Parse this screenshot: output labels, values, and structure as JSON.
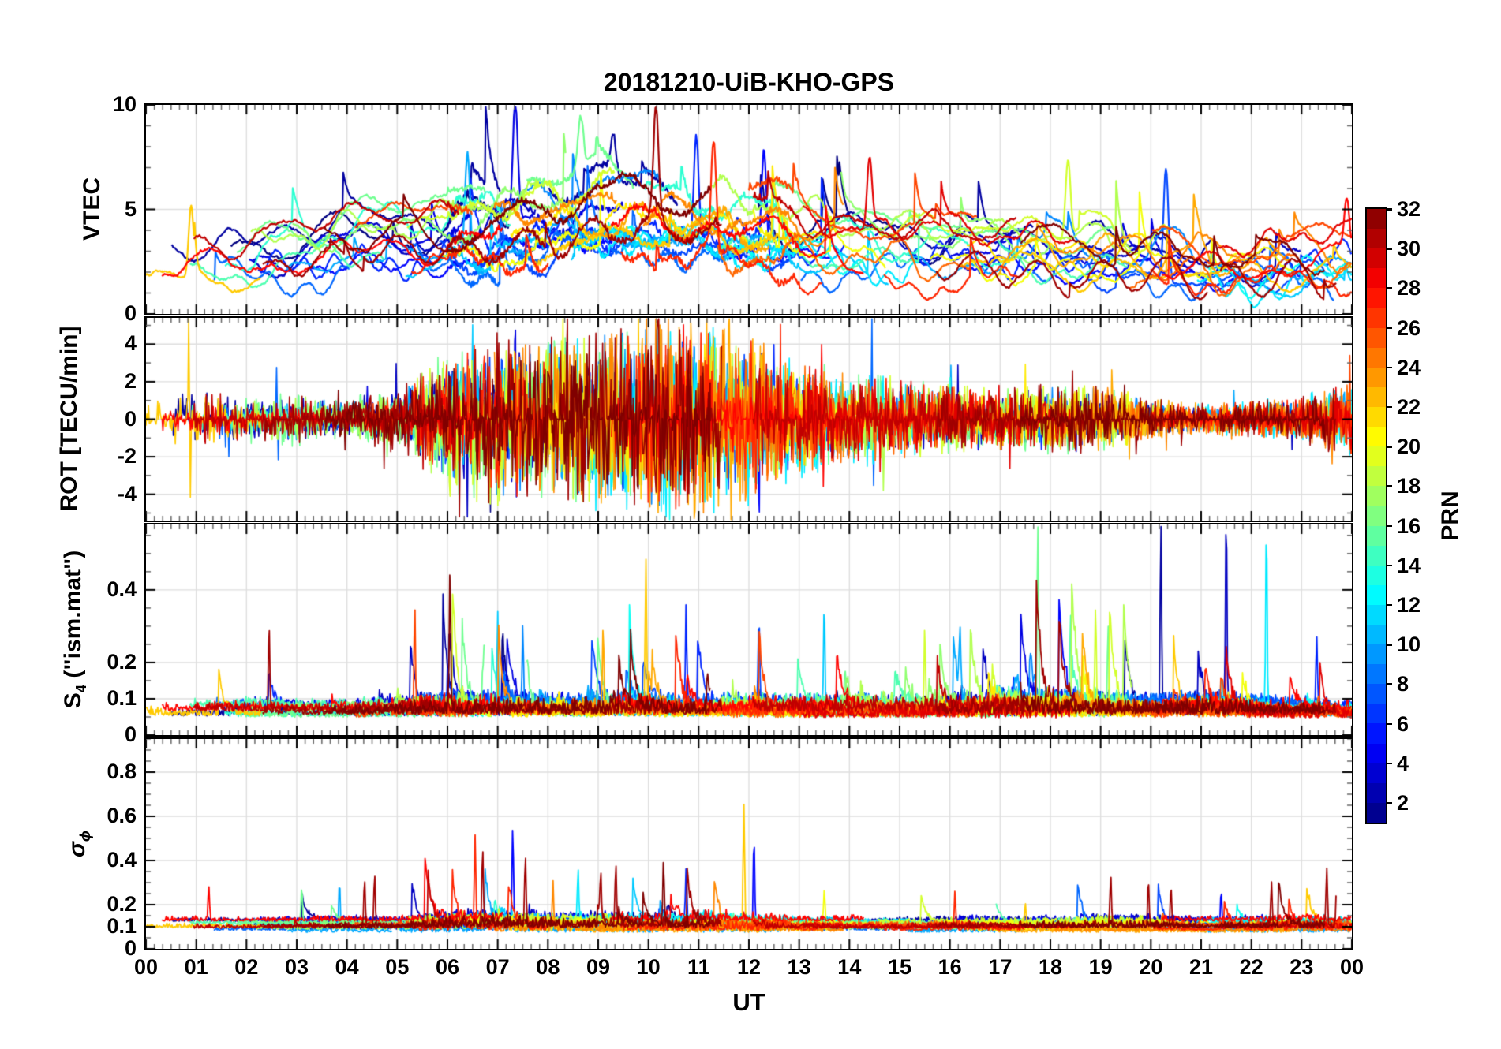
{
  "chart_data": {
    "type": "line",
    "title": "20181210-UiB-KHO-GPS",
    "xlabel": "UT",
    "x_range": [
      0,
      24
    ],
    "x_tick_labels": [
      "00",
      "01",
      "02",
      "03",
      "04",
      "05",
      "06",
      "07",
      "08",
      "09",
      "10",
      "11",
      "12",
      "13",
      "14",
      "15",
      "16",
      "17",
      "18",
      "19",
      "20",
      "21",
      "22",
      "23",
      "00"
    ],
    "x_minor_step_minutes": 10,
    "grid": true,
    "prn_range": [
      1,
      32
    ],
    "colorbar": {
      "label": "PRN",
      "colormap": "jet",
      "value_range": [
        1,
        32
      ],
      "steps": 31,
      "tick_values": [
        2,
        4,
        6,
        8,
        10,
        12,
        14,
        16,
        18,
        20,
        22,
        24,
        26,
        28,
        30,
        32
      ],
      "tick_labels": [
        "2",
        "4",
        "6",
        "8",
        "10",
        "12",
        "14",
        "16",
        "18",
        "20",
        "22",
        "24",
        "26",
        "28",
        "30",
        "32"
      ]
    },
    "panels": [
      {
        "id": "vtec",
        "ylabel": "VTEC",
        "ylim": [
          0,
          10
        ],
        "ytick_values": [
          0,
          5,
          10
        ],
        "ytick_labels": [
          "0",
          "5",
          "10"
        ],
        "y_minor_step": 1,
        "hourly_mean": [
          2.5,
          2.6,
          2.6,
          3.2,
          3.5,
          3.6,
          3.8,
          4.2,
          4.6,
          5.0,
          5.0,
          4.8,
          4.3,
          4.0,
          3.6,
          3.4,
          3.2,
          3.0,
          3.0,
          2.9,
          2.7,
          2.6,
          2.7,
          2.8,
          3.0
        ],
        "hourly_max": [
          4.2,
          4.3,
          4.4,
          5.3,
          5.5,
          5.8,
          8.0,
          9.6,
          8.8,
          9.0,
          9.2,
          9.3,
          8.6,
          7.2,
          8.0,
          6.3,
          5.6,
          5.2,
          5.0,
          6.8,
          7.2,
          5.2,
          4.6,
          4.8,
          5.0
        ],
        "events": [
          [
            0.9,
            22,
            5.2
          ],
          [
            6.4,
            10,
            7.8
          ],
          [
            7.35,
            4,
            9.6
          ],
          [
            8.65,
            16,
            8.6
          ],
          [
            9.3,
            2,
            8.4
          ],
          [
            10.15,
            31,
            8.9
          ],
          [
            10.95,
            6,
            9.1
          ],
          [
            11.3,
            27,
            8.0
          ],
          [
            12.3,
            5,
            7.8
          ],
          [
            14.4,
            29,
            7.7
          ],
          [
            18.35,
            19,
            7.2
          ],
          [
            20.3,
            7,
            7.3
          ],
          [
            23.9,
            28,
            4.9
          ]
        ]
      },
      {
        "id": "rot",
        "ylabel": "ROT [TECU/min]",
        "ylim": [
          -5.4,
          5.4
        ],
        "ytick_values": [
          -4,
          -2,
          0,
          2,
          4
        ],
        "ytick_labels": [
          "-4",
          "-2",
          "0",
          "2",
          "4"
        ],
        "y_minor_step": 1,
        "hourly_amplitude": [
          0.4,
          0.9,
          0.5,
          0.55,
          0.45,
          0.7,
          1.5,
          1.7,
          1.6,
          1.8,
          1.9,
          2.0,
          1.7,
          1.2,
          1.0,
          0.85,
          0.7,
          0.6,
          0.7,
          0.65,
          0.4,
          0.32,
          0.38,
          0.45,
          0.8
        ],
        "events": [
          [
            0.85,
            22,
            4.9
          ],
          [
            2.6,
            8,
            2.8
          ],
          [
            6.5,
            11,
            5.2
          ],
          [
            7.35,
            4,
            5.5
          ],
          [
            8.3,
            20,
            4.2
          ],
          [
            9.3,
            19,
            -4.6
          ],
          [
            10.2,
            31,
            5.0
          ],
          [
            10.7,
            28,
            5.2
          ],
          [
            11.05,
            27,
            5.3
          ],
          [
            11.6,
            23,
            4.6
          ],
          [
            12.2,
            5,
            -5.4
          ],
          [
            12.5,
            6,
            4.2
          ],
          [
            13.45,
            28,
            4.1
          ],
          [
            14.45,
            8,
            4.6
          ],
          [
            16.0,
            14,
            2.6
          ],
          [
            18.3,
            16,
            2.2
          ],
          [
            19.15,
            24,
            2.4
          ]
        ]
      },
      {
        "id": "s4",
        "ylabel_parts": {
          "main": "S",
          "sub": "4",
          "suffix": " (\"ism.mat\")"
        },
        "ylim": [
          0,
          0.58
        ],
        "ytick_values": [
          0,
          0.1,
          0.2,
          0.4
        ],
        "ytick_labels": [
          "0",
          "0.1",
          "0.2",
          "0.4"
        ],
        "y_minor_step": 0.05,
        "baseline": 0.06,
        "hourly_activity": [
          0.6,
          0.55,
          0.65,
          0.5,
          0.5,
          0.8,
          1.1,
          1.0,
          0.9,
          1.0,
          1.1,
          0.9,
          0.9,
          0.9,
          1.0,
          0.95,
          1.0,
          1.25,
          1.25,
          1.1,
          0.9,
          1.1,
          0.9,
          0.7,
          0.7
        ],
        "events": [
          [
            2.45,
            31,
            0.3
          ],
          [
            5.35,
            26,
            0.34
          ],
          [
            6.05,
            32,
            0.45
          ],
          [
            7.0,
            11,
            0.31
          ],
          [
            7.5,
            9,
            0.27
          ],
          [
            9.1,
            23,
            0.28
          ],
          [
            9.95,
            22,
            0.44
          ],
          [
            10.75,
            6,
            0.33
          ],
          [
            12.2,
            7,
            0.33
          ],
          [
            13.5,
            11,
            0.36
          ],
          [
            15.5,
            19,
            0.27
          ],
          [
            16.2,
            10,
            0.25
          ],
          [
            17.75,
            16,
            0.57
          ],
          [
            18.4,
            15,
            0.3
          ],
          [
            18.9,
            19,
            0.34
          ],
          [
            19.15,
            16,
            0.3
          ],
          [
            20.2,
            2,
            0.57
          ],
          [
            21.5,
            3,
            0.58
          ],
          [
            22.3,
            12,
            0.58
          ],
          [
            23.3,
            6,
            0.26
          ]
        ]
      },
      {
        "id": "sigma_phi",
        "ylabel_parts": {
          "main": "σ",
          "sub": "ϕ"
        },
        "ylim": [
          0,
          0.95
        ],
        "ytick_values": [
          0,
          0.1,
          0.2,
          0.4,
          0.6,
          0.8
        ],
        "ytick_labels": [
          "0",
          "0.1",
          "0.2",
          "0.4",
          "0.6",
          "0.8"
        ],
        "y_minor_step": 0.05,
        "baseline": 0.1,
        "hourly_activity": [
          0.4,
          0.5,
          0.4,
          0.5,
          0.6,
          0.5,
          1.2,
          1.3,
          1.1,
          1.0,
          1.0,
          1.2,
          1.0,
          0.6,
          0.5,
          0.5,
          0.6,
          0.6,
          0.6,
          0.8,
          0.7,
          0.5,
          0.6,
          0.8,
          0.7
        ],
        "events": [
          [
            1.25,
            28,
            0.28
          ],
          [
            3.1,
            16,
            0.27
          ],
          [
            3.85,
            10,
            0.3
          ],
          [
            4.35,
            31,
            0.3
          ],
          [
            4.55,
            31,
            0.34
          ],
          [
            6.55,
            27,
            0.5
          ],
          [
            6.7,
            31,
            0.46
          ],
          [
            7.3,
            5,
            0.55
          ],
          [
            7.55,
            31,
            0.42
          ],
          [
            8.1,
            24,
            0.3
          ],
          [
            8.6,
            12,
            0.35
          ],
          [
            9.05,
            31,
            0.3
          ],
          [
            9.35,
            31,
            0.38
          ],
          [
            10.3,
            32,
            0.38
          ],
          [
            10.75,
            6,
            0.35
          ],
          [
            11.9,
            22,
            0.65
          ],
          [
            12.1,
            5,
            0.5
          ],
          [
            13.5,
            20,
            0.26
          ],
          [
            16.1,
            27,
            0.25
          ],
          [
            17.5,
            22,
            0.2
          ],
          [
            19.2,
            31,
            0.32
          ],
          [
            19.95,
            31,
            0.3
          ],
          [
            20.4,
            31,
            0.28
          ],
          [
            21.4,
            5,
            0.26
          ],
          [
            22.4,
            31,
            0.3
          ],
          [
            23.5,
            31,
            0.36
          ],
          [
            23.7,
            31,
            0.3
          ]
        ]
      }
    ]
  }
}
